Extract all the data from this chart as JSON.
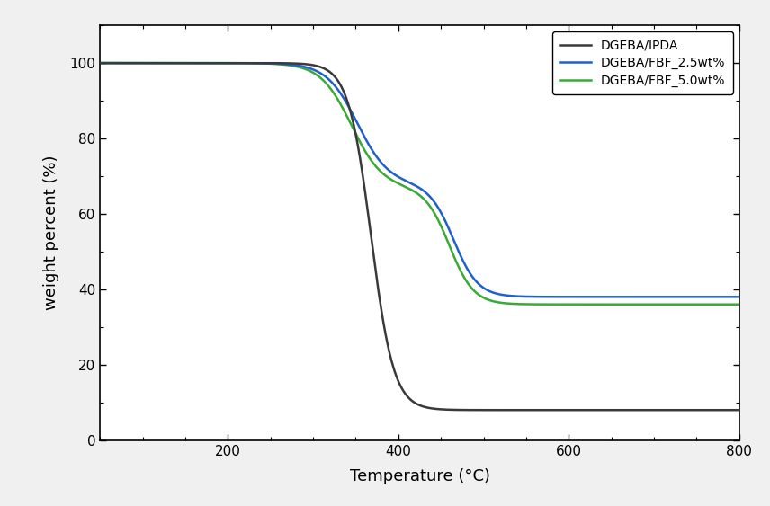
{
  "title": "",
  "xlabel": "Temperature (°C)",
  "ylabel": "weight percent (%)",
  "xlim": [
    50,
    800
  ],
  "ylim": [
    0,
    110
  ],
  "xticks": [
    200,
    400,
    600,
    800
  ],
  "yticks": [
    0,
    20,
    40,
    60,
    80,
    100
  ],
  "legend": [
    "DGEBA/IPDA",
    "DGEBA/FBF_2.5wt%",
    "DGEBA/FBF_5.0wt%"
  ],
  "colors": [
    "#3a3a3a",
    "#2060cc",
    "#3aaa35"
  ],
  "linewidth": 1.8,
  "background_color": "#f0f0f0",
  "plot_bg_color": "#ffffff"
}
